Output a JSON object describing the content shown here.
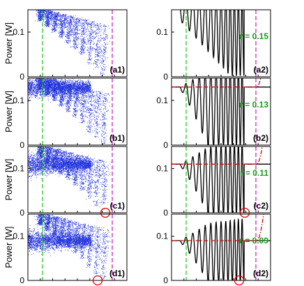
{
  "figure": {
    "ylabel": "Power [W]",
    "yticks": [
      "0",
      "0.1"
    ],
    "colors": {
      "scatter": "#2233dd",
      "curve": "#000000",
      "threshold": "#dd0000",
      "green_line": "#22cc22",
      "magenta_line": "#cc22cc",
      "r_label": "#1f9a1f",
      "marker": "#dd0000"
    }
  },
  "chart_data": [
    {
      "type": "scatter",
      "panel": "(a1)",
      "ylim": [
        0,
        0.15
      ],
      "baseline": null,
      "marker": false,
      "ylabel": "Power [W]",
      "yticks": [
        "0",
        "0.1"
      ]
    },
    {
      "type": "line",
      "panel": "(a2)",
      "ylim": [
        0,
        0.15
      ],
      "r_label": "r = 0.15",
      "threshold": null,
      "marker": false,
      "yticks": [
        "0",
        "0.1"
      ]
    },
    {
      "type": "scatter",
      "panel": "(b1)",
      "ylim": [
        0,
        0.15
      ],
      "baseline": 0.13,
      "marker": false,
      "ylabel": "Power [W]",
      "yticks": [
        "0",
        "0.1"
      ]
    },
    {
      "type": "line",
      "panel": "(b2)",
      "ylim": [
        0,
        0.15
      ],
      "r_label": "r = 0.13",
      "threshold": 0.13,
      "marker": false,
      "yticks": [
        "0",
        "0.1"
      ]
    },
    {
      "type": "scatter",
      "panel": "(c1)",
      "ylim": [
        0,
        0.15
      ],
      "baseline": 0.11,
      "marker": true,
      "ylabel": "Power [W]",
      "yticks": [
        "0",
        "0.1"
      ]
    },
    {
      "type": "line",
      "panel": "(c2)",
      "ylim": [
        0,
        0.15
      ],
      "r_label": "r = 0.11",
      "threshold": 0.11,
      "marker": true,
      "yticks": [
        "0",
        "0.1"
      ]
    },
    {
      "type": "scatter",
      "panel": "(d1)",
      "ylim": [
        0,
        0.15
      ],
      "baseline": 0.09,
      "marker": true,
      "ylabel": "Power [W]",
      "yticks": [
        "0",
        "0.1"
      ]
    },
    {
      "type": "line",
      "panel": "(d2)",
      "ylim": [
        0,
        0.15
      ],
      "r_label": "r = 0.09",
      "threshold": 0.09,
      "marker": true,
      "yticks": [
        "0",
        "0.1"
      ]
    }
  ]
}
